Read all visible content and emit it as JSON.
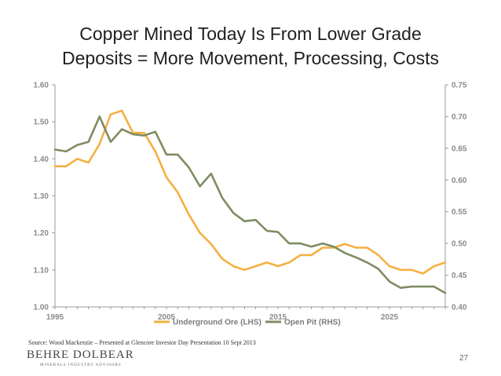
{
  "slide": {
    "title_line1": "Copper Mined Today Is From Lower Grade",
    "title_line2": "Deposits = More Movement, Processing, Costs",
    "source": "Source: Wood Mackenzie – Presented at  Glencore Investor Day Presentation 10 Sept 2013",
    "logo": "BEHRE DOLBEAR",
    "logo_sub": "MINERALS INDUSTRY ADVISORS",
    "page_number": "27"
  },
  "chart_data": {
    "type": "line",
    "title": "",
    "xlabel": "",
    "ylabel_left": "",
    "ylabel_right": "",
    "x_ticks": [
      "1995",
      "2005",
      "2015",
      "2025"
    ],
    "xlim": [
      1995,
      2030
    ],
    "y_left_ticks": [
      "1.00",
      "1.10",
      "1.20",
      "1.30",
      "1.40",
      "1.50",
      "1.60"
    ],
    "ylim_left": [
      1.0,
      1.6
    ],
    "y_right_ticks": [
      "0.40",
      "0.45",
      "0.50",
      "0.55",
      "0.60",
      "0.65",
      "0.70",
      "0.75"
    ],
    "ylim_right": [
      0.4,
      0.75
    ],
    "colors": {
      "underground": "#f5b041",
      "openpit": "#7f8c63",
      "axis": "#9a9a9a"
    },
    "series": [
      {
        "name": "Underground Ore (LHS)",
        "axis": "left",
        "x": [
          1995,
          1996,
          1997,
          1998,
          1999,
          2000,
          2001,
          2002,
          2003,
          2004,
          2005,
          2006,
          2007,
          2008,
          2009,
          2010,
          2011,
          2012,
          2013,
          2014,
          2015,
          2016,
          2017,
          2018,
          2019,
          2020,
          2021,
          2022,
          2023,
          2024,
          2025,
          2026,
          2027,
          2028,
          2029,
          2030
        ],
        "values": [
          1.38,
          1.38,
          1.4,
          1.39,
          1.44,
          1.52,
          1.53,
          1.47,
          1.47,
          1.42,
          1.35,
          1.31,
          1.25,
          1.2,
          1.17,
          1.13,
          1.11,
          1.1,
          1.11,
          1.12,
          1.11,
          1.12,
          1.14,
          1.14,
          1.16,
          1.16,
          1.17,
          1.16,
          1.16,
          1.14,
          1.11,
          1.1,
          1.1,
          1.09,
          1.11,
          1.12
        ]
      },
      {
        "name": "Open Pit (RHS)",
        "axis": "right",
        "x": [
          1995,
          1996,
          1997,
          1998,
          1999,
          2000,
          2001,
          2002,
          2003,
          2004,
          2005,
          2006,
          2007,
          2008,
          2009,
          2010,
          2011,
          2012,
          2013,
          2014,
          2015,
          2016,
          2017,
          2018,
          2019,
          2020,
          2021,
          2022,
          2023,
          2024,
          2025,
          2026,
          2027,
          2028,
          2029,
          2030
        ],
        "values": [
          0.648,
          0.645,
          0.655,
          0.66,
          0.7,
          0.66,
          0.68,
          0.672,
          0.67,
          0.676,
          0.64,
          0.64,
          0.62,
          0.59,
          0.61,
          0.572,
          0.548,
          0.535,
          0.537,
          0.52,
          0.518,
          0.5,
          0.5,
          0.495,
          0.5,
          0.495,
          0.485,
          0.478,
          0.47,
          0.46,
          0.44,
          0.43,
          0.432,
          0.432,
          0.432,
          0.422
        ]
      }
    ],
    "legend": [
      "Underground Ore (LHS)",
      "Open Pit (RHS)"
    ],
    "legend_position": "bottom-center"
  }
}
